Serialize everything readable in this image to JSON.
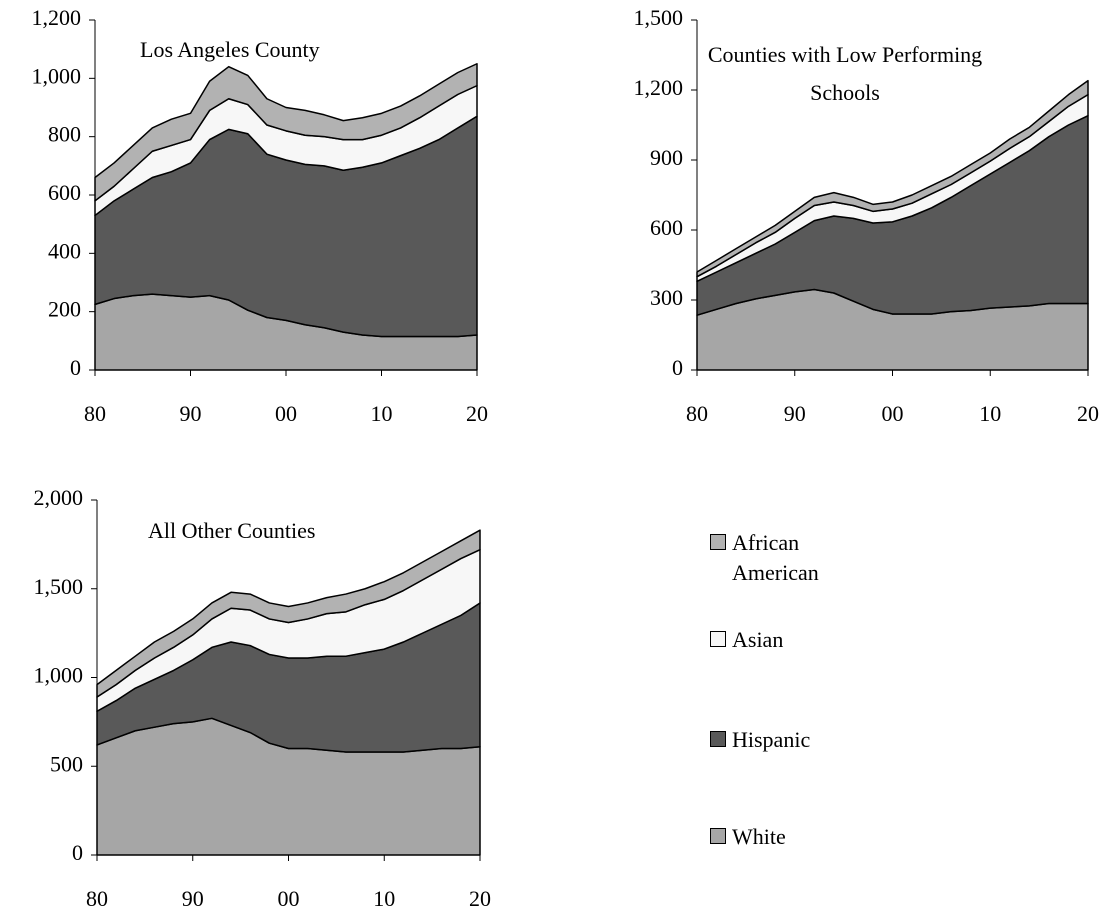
{
  "chart_data": [
    {
      "type": "stacked_area",
      "title": "Los Angeles County",
      "x": [
        1980,
        1982,
        1984,
        1986,
        1988,
        1990,
        1992,
        1994,
        1996,
        1998,
        2000,
        2002,
        2004,
        2006,
        2008,
        2010,
        2012,
        2014,
        2016,
        2018,
        2020
      ],
      "xlim": [
        1980,
        2020
      ],
      "xticks": [
        {
          "value": 1980,
          "label": "80"
        },
        {
          "value": 1990,
          "label": "90"
        },
        {
          "value": 2000,
          "label": "00"
        },
        {
          "value": 2010,
          "label": "10"
        },
        {
          "value": 2020,
          "label": "20"
        }
      ],
      "ylim": [
        0,
        1200
      ],
      "yticks": [
        0,
        200,
        400,
        600,
        800,
        {
          "value": 1000,
          "label": "1,000"
        },
        {
          "value": 1200,
          "label": "1,200"
        }
      ],
      "series": [
        {
          "name": "White",
          "color": "#a6a6a6",
          "values": [
            225,
            245,
            255,
            260,
            255,
            250,
            255,
            240,
            205,
            180,
            170,
            155,
            145,
            130,
            120,
            115,
            115,
            115,
            115,
            115,
            120
          ]
        },
        {
          "name": "Hispanic",
          "color": "#595959",
          "values": [
            305,
            335,
            365,
            400,
            425,
            460,
            535,
            585,
            605,
            560,
            550,
            550,
            555,
            555,
            575,
            595,
            620,
            645,
            675,
            715,
            750
          ]
        },
        {
          "name": "Asian",
          "color": "#f7f7f7",
          "values": [
            50,
            50,
            70,
            90,
            90,
            80,
            100,
            105,
            100,
            100,
            100,
            100,
            100,
            105,
            95,
            95,
            95,
            105,
            115,
            115,
            105
          ]
        },
        {
          "name": "African American",
          "color": "#b2b2b2",
          "values": [
            80,
            80,
            80,
            80,
            90,
            90,
            100,
            110,
            100,
            90,
            80,
            85,
            75,
            65,
            75,
            75,
            75,
            75,
            75,
            75,
            75
          ]
        }
      ]
    },
    {
      "type": "stacked_area",
      "title": "Counties with Low Performing Schools",
      "x": [
        1980,
        1982,
        1984,
        1986,
        1988,
        1990,
        1992,
        1994,
        1996,
        1998,
        2000,
        2002,
        2004,
        2006,
        2008,
        2010,
        2012,
        2014,
        2016,
        2018,
        2020
      ],
      "xlim": [
        1980,
        2020
      ],
      "xticks": [
        {
          "value": 1980,
          "label": "80"
        },
        {
          "value": 1990,
          "label": "90"
        },
        {
          "value": 2000,
          "label": "00"
        },
        {
          "value": 2010,
          "label": "10"
        },
        {
          "value": 2020,
          "label": "20"
        }
      ],
      "ylim": [
        0,
        1500
      ],
      "yticks": [
        0,
        300,
        600,
        900,
        {
          "value": 1200,
          "label": "1,200"
        },
        {
          "value": 1500,
          "label": "1,500"
        }
      ],
      "series": [
        {
          "name": "White",
          "color": "#a6a6a6",
          "values": [
            235,
            260,
            285,
            305,
            320,
            335,
            345,
            330,
            295,
            260,
            240,
            240,
            240,
            250,
            255,
            265,
            270,
            275,
            285,
            285,
            285
          ]
        },
        {
          "name": "Hispanic",
          "color": "#595959",
          "values": [
            145,
            160,
            175,
            195,
            220,
            255,
            295,
            330,
            355,
            370,
            395,
            420,
            455,
            490,
            535,
            575,
            620,
            665,
            715,
            765,
            805
          ]
        },
        {
          "name": "Asian",
          "color": "#f7f7f7",
          "values": [
            20,
            25,
            35,
            45,
            50,
            60,
            65,
            60,
            55,
            50,
            55,
            55,
            60,
            55,
            55,
            55,
            60,
            60,
            65,
            80,
            90
          ]
        },
        {
          "name": "African American",
          "color": "#b2b2b2",
          "values": [
            20,
            25,
            25,
            25,
            30,
            30,
            35,
            40,
            35,
            30,
            30,
            35,
            35,
            35,
            35,
            35,
            40,
            40,
            45,
            50,
            60
          ]
        }
      ]
    },
    {
      "type": "stacked_area",
      "title": "All Other Counties",
      "x": [
        1980,
        1982,
        1984,
        1986,
        1988,
        1990,
        1992,
        1994,
        1996,
        1998,
        2000,
        2002,
        2004,
        2006,
        2008,
        2010,
        2012,
        2014,
        2016,
        2018,
        2020
      ],
      "xlim": [
        1980,
        2020
      ],
      "xticks": [
        {
          "value": 1980,
          "label": "80"
        },
        {
          "value": 1990,
          "label": "90"
        },
        {
          "value": 2000,
          "label": "00"
        },
        {
          "value": 2010,
          "label": "10"
        },
        {
          "value": 2020,
          "label": "20"
        }
      ],
      "ylim": [
        0,
        2000
      ],
      "yticks": [
        0,
        500,
        {
          "value": 1000,
          "label": "1,000"
        },
        {
          "value": 1500,
          "label": "1,500"
        },
        {
          "value": 2000,
          "label": "2,000"
        }
      ],
      "series": [
        {
          "name": "White",
          "color": "#a6a6a6",
          "values": [
            620,
            660,
            700,
            720,
            740,
            750,
            770,
            730,
            690,
            630,
            600,
            600,
            590,
            580,
            580,
            580,
            580,
            590,
            600,
            600,
            610
          ]
        },
        {
          "name": "Hispanic",
          "color": "#595959",
          "values": [
            190,
            210,
            240,
            270,
            300,
            350,
            400,
            470,
            490,
            500,
            510,
            510,
            530,
            540,
            560,
            580,
            620,
            660,
            700,
            750,
            810
          ]
        },
        {
          "name": "Asian",
          "color": "#f7f7f7",
          "values": [
            80,
            90,
            100,
            120,
            130,
            140,
            160,
            190,
            200,
            200,
            200,
            220,
            240,
            250,
            270,
            280,
            290,
            300,
            310,
            320,
            300
          ]
        },
        {
          "name": "African American",
          "color": "#b2b2b2",
          "values": [
            70,
            80,
            80,
            90,
            90,
            90,
            90,
            90,
            90,
            90,
            90,
            90,
            90,
            100,
            90,
            100,
            100,
            100,
            100,
            100,
            110
          ]
        }
      ]
    }
  ]
}
